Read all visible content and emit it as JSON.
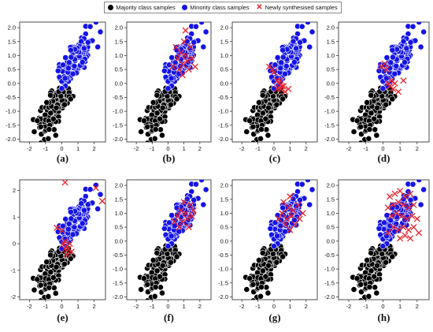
{
  "legend": {
    "items": [
      {
        "label": "Majority class samples",
        "marker": "circle",
        "color": "#000000"
      },
      {
        "label": "Minority class samples",
        "marker": "circle",
        "color": "#1414e6"
      },
      {
        "label": "Newly synthesised samples",
        "marker": "x",
        "color": "#e8202a"
      }
    ]
  },
  "chart_data": [
    {
      "type": "scatter",
      "caption": "(a)",
      "xticks": [
        -2,
        -1,
        0,
        1,
        2
      ],
      "yticks": [
        -2.0,
        -1.5,
        -1.0,
        -0.5,
        0.0,
        0.5,
        1.0,
        1.5,
        2.0
      ],
      "xlim": [
        -2.6,
        2.7
      ],
      "ylim": [
        -2.1,
        2.2
      ],
      "seed": 11,
      "synthetic": []
    },
    {
      "type": "scatter",
      "caption": "(b)",
      "xticks": [
        -2,
        -1,
        0,
        1,
        2
      ],
      "yticks": [
        -2.0,
        -1.5,
        -1.0,
        -0.5,
        0.0,
        0.5,
        1.0,
        1.5,
        2.0
      ],
      "xlim": [
        -2.6,
        2.7
      ],
      "ylim": [
        -2.1,
        2.2
      ],
      "seed": 12,
      "synthetic": [
        [
          0.6,
          0.9
        ],
        [
          0.9,
          0.7
        ],
        [
          1.2,
          0.8
        ],
        [
          0.8,
          1.1
        ],
        [
          1.1,
          1.0
        ],
        [
          1.4,
          1.3
        ],
        [
          1.3,
          0.5
        ],
        [
          0.7,
          0.5
        ],
        [
          1.0,
          1.5
        ],
        [
          1.5,
          0.9
        ],
        [
          0.3,
          0.6
        ],
        [
          1.7,
          0.6
        ],
        [
          0.9,
          0.3
        ],
        [
          0.5,
          1.3
        ],
        [
          1.1,
          1.9
        ]
      ]
    },
    {
      "type": "scatter",
      "caption": "(c)",
      "xticks": [
        -2,
        -1,
        0,
        1,
        2
      ],
      "yticks": [
        -2.0,
        -1.5,
        -1.0,
        -0.5,
        0.0,
        0.5,
        1.0,
        1.5,
        2.0
      ],
      "xlim": [
        -2.6,
        2.7
      ],
      "ylim": [
        -2.1,
        2.2
      ],
      "seed": 13,
      "synthetic": [
        [
          -0.3,
          0.6
        ],
        [
          0.0,
          0.4
        ],
        [
          0.2,
          0.1
        ],
        [
          0.3,
          0.0
        ],
        [
          0.5,
          -0.1
        ],
        [
          0.4,
          -0.2
        ],
        [
          0.7,
          -0.3
        ],
        [
          0.6,
          -0.1
        ],
        [
          0.9,
          -0.2
        ],
        [
          0.2,
          -0.2
        ],
        [
          -0.1,
          0.5
        ],
        [
          0.4,
          0.1
        ]
      ]
    },
    {
      "type": "scatter",
      "caption": "(d)",
      "xticks": [
        -2,
        -1,
        0,
        1,
        2
      ],
      "yticks": [
        -2.0,
        -1.5,
        -1.0,
        -0.5,
        0.0,
        0.5,
        1.0,
        1.5,
        2.0
      ],
      "xlim": [
        -2.6,
        2.7
      ],
      "ylim": [
        -2.1,
        2.2
      ],
      "seed": 14,
      "synthetic": [
        [
          -0.1,
          0.6
        ],
        [
          0.2,
          0.5
        ],
        [
          0.3,
          0.0
        ],
        [
          0.5,
          0.1
        ],
        [
          0.4,
          -0.1
        ],
        [
          0.6,
          -0.2
        ],
        [
          0.9,
          -0.3
        ],
        [
          1.2,
          0.1
        ],
        [
          0.1,
          0.7
        ],
        [
          0.7,
          0.0
        ]
      ]
    },
    {
      "type": "scatter",
      "caption": "(e)",
      "xticks": [
        -2,
        -1,
        0,
        1,
        2
      ],
      "yticks": [
        -2,
        -1,
        0,
        1,
        2
      ],
      "xlim": [
        -2.6,
        2.7
      ],
      "ylim": [
        -2.1,
        2.4
      ],
      "seed": 15,
      "synthetic": [
        [
          0.2,
          2.3
        ],
        [
          2.1,
          2.1
        ],
        [
          2.5,
          1.6
        ],
        [
          -0.3,
          0.6
        ],
        [
          0.0,
          0.5
        ],
        [
          0.2,
          0.1
        ],
        [
          0.3,
          -0.1
        ],
        [
          0.4,
          -0.2
        ],
        [
          0.5,
          0.0
        ],
        [
          0.6,
          -0.3
        ],
        [
          0.3,
          -0.4
        ],
        [
          0.1,
          0.0
        ],
        [
          0.2,
          -0.2
        ]
      ]
    },
    {
      "type": "scatter",
      "caption": "(f)",
      "xticks": [
        -2,
        -1,
        0,
        1,
        2
      ],
      "yticks": [
        -2.0,
        -1.5,
        -1.0,
        -0.5,
        0.0,
        0.5,
        1.0,
        1.5,
        2.0
      ],
      "xlim": [
        -2.6,
        2.7
      ],
      "ylim": [
        -2.1,
        2.2
      ],
      "seed": 16,
      "synthetic": [
        [
          0.6,
          0.9
        ],
        [
          0.9,
          0.7
        ],
        [
          1.2,
          0.8
        ],
        [
          0.8,
          1.1
        ],
        [
          1.1,
          1.0
        ],
        [
          1.4,
          1.3
        ],
        [
          1.3,
          0.5
        ],
        [
          0.7,
          0.5
        ],
        [
          1.0,
          1.4
        ],
        [
          1.5,
          0.9
        ],
        [
          0.4,
          0.7
        ],
        [
          1.6,
          1.1
        ]
      ]
    },
    {
      "type": "scatter",
      "caption": "(g)",
      "xticks": [
        -2,
        -1,
        0,
        1,
        2
      ],
      "yticks": [
        -2.0,
        -1.5,
        -1.0,
        -0.5,
        0.0,
        0.5,
        1.0,
        1.5,
        2.0
      ],
      "xlim": [
        -2.6,
        2.7
      ],
      "ylim": [
        -2.1,
        2.2
      ],
      "seed": 17,
      "synthetic": [
        [
          0.5,
          1.0
        ],
        [
          0.8,
          0.8
        ],
        [
          1.1,
          0.9
        ],
        [
          0.9,
          1.2
        ],
        [
          1.2,
          1.1
        ],
        [
          1.5,
          1.3
        ],
        [
          1.3,
          0.6
        ],
        [
          0.7,
          0.6
        ],
        [
          1.0,
          1.6
        ],
        [
          1.6,
          0.8
        ],
        [
          0.3,
          0.8
        ],
        [
          1.8,
          1.0
        ],
        [
          1.0,
          0.4
        ],
        [
          0.6,
          1.4
        ]
      ]
    },
    {
      "type": "scatter",
      "caption": "(h)",
      "xticks": [
        -2,
        -1,
        0,
        1,
        2
      ],
      "yticks": [
        -2.0,
        -1.5,
        -1.0,
        -0.5,
        0.0,
        0.5,
        1.0,
        1.5,
        2.0
      ],
      "xlim": [
        -2.6,
        2.7
      ],
      "ylim": [
        -2.1,
        2.2
      ],
      "seed": 18,
      "synthetic": [
        [
          0.4,
          1.6
        ],
        [
          0.7,
          1.7
        ],
        [
          1.0,
          1.8
        ],
        [
          1.3,
          1.6
        ],
        [
          1.6,
          1.7
        ],
        [
          0.3,
          1.2
        ],
        [
          0.6,
          1.3
        ],
        [
          0.9,
          1.4
        ],
        [
          1.2,
          1.3
        ],
        [
          1.5,
          1.2
        ],
        [
          1.8,
          1.3
        ],
        [
          0.5,
          0.9
        ],
        [
          0.8,
          1.0
        ],
        [
          1.1,
          0.9
        ],
        [
          1.4,
          0.8
        ],
        [
          1.7,
          0.9
        ],
        [
          0.6,
          0.5
        ],
        [
          0.9,
          0.4
        ],
        [
          1.2,
          0.5
        ],
        [
          1.5,
          0.4
        ],
        [
          1.8,
          0.5
        ],
        [
          1.0,
          0.1
        ],
        [
          1.3,
          0.2
        ],
        [
          1.6,
          0.1
        ],
        [
          2.0,
          0.8
        ],
        [
          2.1,
          0.3
        ],
        [
          0.3,
          0.3
        ]
      ]
    }
  ]
}
